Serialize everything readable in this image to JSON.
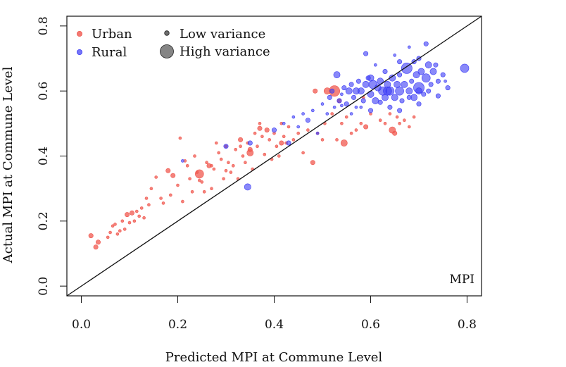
{
  "chart_data": {
    "type": "scatter",
    "title": "",
    "xlabel": "Predicted MPI at Commune Level",
    "ylabel": "Actual MPI at Commune Level",
    "annotation": "MPI",
    "xlim": [
      -0.03,
      0.83
    ],
    "ylim": [
      -0.03,
      0.83
    ],
    "xticks": [
      0.0,
      0.2,
      0.4,
      0.6,
      0.8
    ],
    "xtick_labels": [
      "0.0",
      "0.2",
      "0.4",
      "0.6",
      "0.8"
    ],
    "yticks": [
      0.0,
      0.2,
      0.4,
      0.6,
      0.8
    ],
    "ytick_labels": [
      "0.0",
      "0.2",
      "0.4",
      "0.6",
      "0.8"
    ],
    "grid": false,
    "reference_line": "y = x",
    "legend": {
      "placement": "top-left",
      "color_entries": [
        {
          "label": "Urban",
          "color": "#f0584f"
        },
        {
          "label": "Rural",
          "color": "#3b3bf5"
        }
      ],
      "size_entries": [
        {
          "label": "Low variance",
          "size": 1
        },
        {
          "label": "High variance",
          "size": 5
        }
      ]
    },
    "series": [
      {
        "name": "Urban",
        "color": "#f0584f",
        "points": [
          [
            0.02,
            0.155,
            2
          ],
          [
            0.03,
            0.12,
            2
          ],
          [
            0.035,
            0.135,
            2
          ],
          [
            0.055,
            0.15,
            1
          ],
          [
            0.06,
            0.165,
            1
          ],
          [
            0.065,
            0.185,
            1
          ],
          [
            0.07,
            0.19,
            1
          ],
          [
            0.075,
            0.16,
            1
          ],
          [
            0.08,
            0.17,
            1
          ],
          [
            0.085,
            0.2,
            1
          ],
          [
            0.09,
            0.175,
            1
          ],
          [
            0.095,
            0.22,
            2
          ],
          [
            0.1,
            0.195,
            1
          ],
          [
            0.105,
            0.225,
            2
          ],
          [
            0.11,
            0.2,
            1
          ],
          [
            0.115,
            0.23,
            1
          ],
          [
            0.12,
            0.215,
            1
          ],
          [
            0.125,
            0.24,
            1
          ],
          [
            0.13,
            0.21,
            1
          ],
          [
            0.135,
            0.27,
            1
          ],
          [
            0.14,
            0.25,
            1
          ],
          [
            0.145,
            0.3,
            1
          ],
          [
            0.155,
            0.335,
            1
          ],
          [
            0.165,
            0.27,
            1
          ],
          [
            0.17,
            0.255,
            1
          ],
          [
            0.18,
            0.355,
            2
          ],
          [
            0.185,
            0.28,
            1
          ],
          [
            0.19,
            0.34,
            2
          ],
          [
            0.2,
            0.31,
            1
          ],
          [
            0.205,
            0.455,
            1
          ],
          [
            0.21,
            0.26,
            1
          ],
          [
            0.215,
            0.385,
            1
          ],
          [
            0.22,
            0.37,
            1
          ],
          [
            0.225,
            0.33,
            1
          ],
          [
            0.23,
            0.29,
            1
          ],
          [
            0.235,
            0.4,
            1
          ],
          [
            0.24,
            0.35,
            1
          ],
          [
            0.245,
            0.345,
            4
          ],
          [
            0.25,
            0.32,
            1
          ],
          [
            0.255,
            0.29,
            1
          ],
          [
            0.26,
            0.38,
            1
          ],
          [
            0.265,
            0.37,
            2
          ],
          [
            0.27,
            0.3,
            1
          ],
          [
            0.275,
            0.36,
            1
          ],
          [
            0.28,
            0.44,
            1
          ],
          [
            0.285,
            0.41,
            1
          ],
          [
            0.29,
            0.39,
            1
          ],
          [
            0.295,
            0.33,
            1
          ],
          [
            0.3,
            0.43,
            1
          ],
          [
            0.305,
            0.38,
            1
          ],
          [
            0.31,
            0.35,
            1
          ],
          [
            0.315,
            0.37,
            1
          ],
          [
            0.32,
            0.42,
            1
          ],
          [
            0.325,
            0.33,
            1
          ],
          [
            0.33,
            0.45,
            2
          ],
          [
            0.335,
            0.4,
            1
          ],
          [
            0.34,
            0.38,
            1
          ],
          [
            0.345,
            0.44,
            1
          ],
          [
            0.35,
            0.42,
            2
          ],
          [
            0.355,
            0.36,
            1
          ],
          [
            0.36,
            0.47,
            1
          ],
          [
            0.365,
            0.43,
            1
          ],
          [
            0.37,
            0.5,
            1
          ],
          [
            0.375,
            0.46,
            1
          ],
          [
            0.38,
            0.405,
            1
          ],
          [
            0.385,
            0.48,
            2
          ],
          [
            0.39,
            0.45,
            1
          ],
          [
            0.395,
            0.39,
            1
          ],
          [
            0.4,
            0.47,
            1
          ],
          [
            0.405,
            0.43,
            1
          ],
          [
            0.41,
            0.4,
            1
          ],
          [
            0.415,
            0.5,
            1
          ],
          [
            0.42,
            0.46,
            1
          ],
          [
            0.425,
            0.44,
            1
          ],
          [
            0.43,
            0.49,
            1
          ],
          [
            0.44,
            0.45,
            1
          ],
          [
            0.45,
            0.47,
            1
          ],
          [
            0.46,
            0.41,
            1
          ],
          [
            0.47,
            0.48,
            1
          ],
          [
            0.48,
            0.38,
            2
          ],
          [
            0.485,
            0.6,
            2
          ],
          [
            0.49,
            0.47,
            1
          ],
          [
            0.5,
            0.45,
            1
          ],
          [
            0.505,
            0.5,
            1
          ],
          [
            0.51,
            0.6,
            3
          ],
          [
            0.52,
            0.53,
            1
          ],
          [
            0.525,
            0.6,
            5
          ],
          [
            0.53,
            0.45,
            1
          ],
          [
            0.535,
            0.57,
            2
          ],
          [
            0.54,
            0.5,
            1
          ],
          [
            0.545,
            0.44,
            3
          ],
          [
            0.55,
            0.52,
            1
          ],
          [
            0.56,
            0.47,
            1
          ],
          [
            0.57,
            0.48,
            1
          ],
          [
            0.58,
            0.5,
            1
          ],
          [
            0.585,
            0.58,
            1
          ],
          [
            0.59,
            0.49,
            2
          ],
          [
            0.6,
            0.53,
            1
          ],
          [
            0.62,
            0.51,
            1
          ],
          [
            0.63,
            0.5,
            1
          ],
          [
            0.64,
            0.53,
            1
          ],
          [
            0.645,
            0.48,
            3
          ],
          [
            0.65,
            0.47,
            2
          ],
          [
            0.655,
            0.52,
            1
          ],
          [
            0.66,
            0.5,
            1
          ],
          [
            0.67,
            0.51,
            1
          ],
          [
            0.68,
            0.49,
            1
          ],
          [
            0.69,
            0.52,
            1
          ],
          [
            0.37,
            0.485,
            2
          ],
          [
            0.33,
            0.43,
            1
          ],
          [
            0.35,
            0.41,
            3
          ],
          [
            0.415,
            0.44,
            2
          ],
          [
            0.27,
            0.37,
            1
          ],
          [
            0.3,
            0.355,
            1
          ],
          [
            0.245,
            0.325,
            1
          ]
        ]
      },
      {
        "name": "Rural",
        "color": "#3b3bf5",
        "points": [
          [
            0.21,
            0.385,
            1
          ],
          [
            0.3,
            0.43,
            2
          ],
          [
            0.345,
            0.305,
            3
          ],
          [
            0.35,
            0.44,
            2
          ],
          [
            0.4,
            0.48,
            2
          ],
          [
            0.42,
            0.5,
            1
          ],
          [
            0.43,
            0.44,
            2
          ],
          [
            0.44,
            0.52,
            1
          ],
          [
            0.45,
            0.49,
            1
          ],
          [
            0.46,
            0.53,
            1
          ],
          [
            0.47,
            0.51,
            2
          ],
          [
            0.48,
            0.54,
            1
          ],
          [
            0.49,
            0.47,
            1
          ],
          [
            0.5,
            0.56,
            1
          ],
          [
            0.51,
            0.53,
            1
          ],
          [
            0.515,
            0.58,
            2
          ],
          [
            0.52,
            0.6,
            2
          ],
          [
            0.525,
            0.55,
            1
          ],
          [
            0.53,
            0.65,
            3
          ],
          [
            0.535,
            0.57,
            2
          ],
          [
            0.54,
            0.59,
            1
          ],
          [
            0.545,
            0.61,
            2
          ],
          [
            0.55,
            0.56,
            2
          ],
          [
            0.555,
            0.6,
            3
          ],
          [
            0.56,
            0.62,
            2
          ],
          [
            0.565,
            0.58,
            2
          ],
          [
            0.57,
            0.55,
            1
          ],
          [
            0.575,
            0.63,
            2
          ],
          [
            0.58,
            0.6,
            3
          ],
          [
            0.585,
            0.57,
            2
          ],
          [
            0.59,
            0.62,
            3
          ],
          [
            0.595,
            0.64,
            2
          ],
          [
            0.6,
            0.59,
            3
          ],
          [
            0.605,
            0.62,
            4
          ],
          [
            0.61,
            0.57,
            3
          ],
          [
            0.615,
            0.61,
            3
          ],
          [
            0.62,
            0.63,
            3
          ],
          [
            0.625,
            0.6,
            4
          ],
          [
            0.63,
            0.58,
            3
          ],
          [
            0.635,
            0.62,
            3
          ],
          [
            0.64,
            0.6,
            4
          ],
          [
            0.645,
            0.64,
            3
          ],
          [
            0.65,
            0.58,
            3
          ],
          [
            0.655,
            0.62,
            3
          ],
          [
            0.66,
            0.6,
            4
          ],
          [
            0.665,
            0.57,
            2
          ],
          [
            0.67,
            0.62,
            3
          ],
          [
            0.675,
            0.67,
            5
          ],
          [
            0.68,
            0.6,
            3
          ],
          [
            0.685,
            0.63,
            2
          ],
          [
            0.69,
            0.58,
            3
          ],
          [
            0.695,
            0.65,
            3
          ],
          [
            0.7,
            0.61,
            5
          ],
          [
            0.705,
            0.66,
            3
          ],
          [
            0.71,
            0.59,
            2
          ],
          [
            0.715,
            0.64,
            4
          ],
          [
            0.72,
            0.68,
            3
          ],
          [
            0.725,
            0.62,
            2
          ],
          [
            0.73,
            0.66,
            3
          ],
          [
            0.74,
            0.63,
            2
          ],
          [
            0.75,
            0.65,
            2
          ],
          [
            0.76,
            0.61,
            2
          ],
          [
            0.795,
            0.67,
            4
          ],
          [
            0.59,
            0.715,
            2
          ],
          [
            0.65,
            0.71,
            1
          ],
          [
            0.68,
            0.735,
            1
          ],
          [
            0.7,
            0.7,
            2
          ],
          [
            0.715,
            0.745,
            2
          ],
          [
            0.735,
            0.68,
            2
          ],
          [
            0.72,
            0.6,
            2
          ],
          [
            0.755,
            0.63,
            1
          ],
          [
            0.74,
            0.585,
            2
          ],
          [
            0.7,
            0.56,
            2
          ],
          [
            0.66,
            0.54,
            2
          ],
          [
            0.64,
            0.55,
            2
          ],
          [
            0.62,
            0.565,
            2
          ],
          [
            0.6,
            0.54,
            2
          ],
          [
            0.58,
            0.55,
            1
          ],
          [
            0.56,
            0.53,
            1
          ],
          [
            0.54,
            0.555,
            1
          ],
          [
            0.57,
            0.6,
            3
          ],
          [
            0.6,
            0.64,
            3
          ],
          [
            0.63,
            0.66,
            2
          ],
          [
            0.66,
            0.65,
            2
          ],
          [
            0.69,
            0.69,
            2
          ],
          [
            0.66,
            0.69,
            2
          ],
          [
            0.61,
            0.68,
            1
          ],
          [
            0.635,
            0.6,
            4
          ],
          [
            0.7,
            0.6,
            3
          ],
          [
            0.68,
            0.58,
            2
          ]
        ]
      }
    ]
  }
}
